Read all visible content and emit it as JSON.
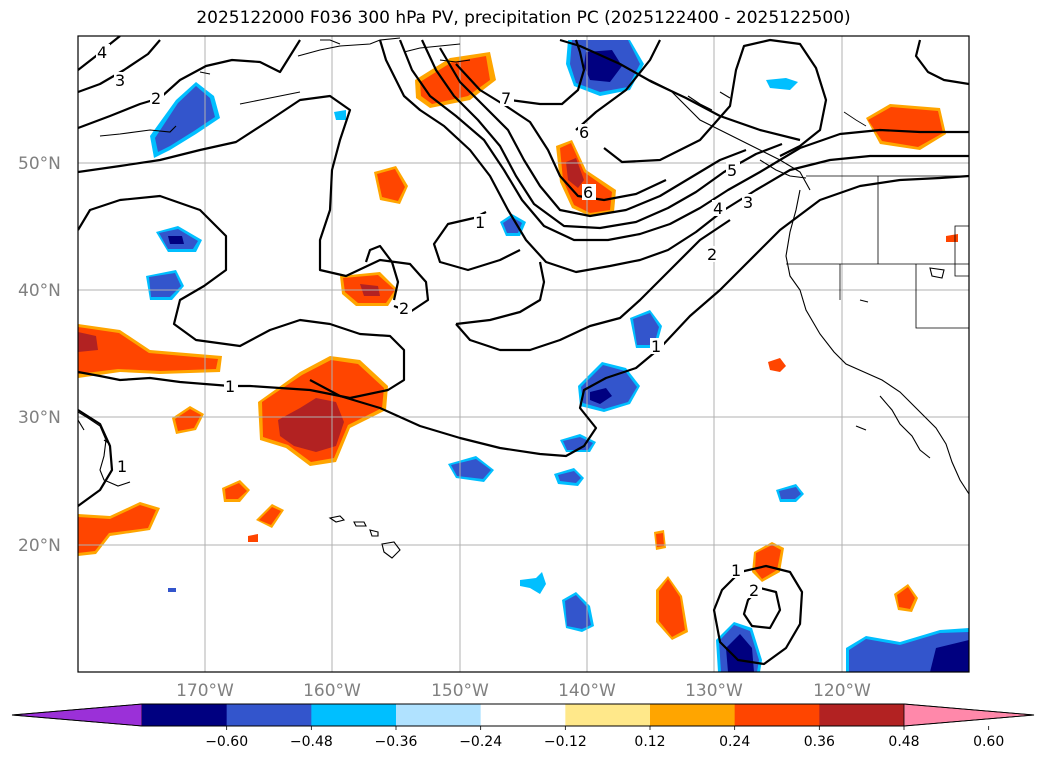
{
  "title": "2025122000 F036 300 hPa PV, precipitation PC (2025122400 - 2025122500)",
  "map": {
    "lat_labels": [
      "50°N",
      "40°N",
      "30°N",
      "20°N"
    ],
    "lon_labels": [
      "170°W",
      "160°W",
      "150°W",
      "140°W",
      "130°W",
      "120°W"
    ],
    "contour_labels": [
      "4",
      "3",
      "2",
      "7",
      "6",
      "6",
      "1",
      "5",
      "4",
      "3",
      "2",
      "2",
      "1",
      "1",
      "1",
      "1",
      "2"
    ]
  },
  "colorbar": {
    "tick_labels": [
      "−0.60",
      "−0.48",
      "−0.36",
      "−0.24",
      "−0.12",
      "0.12",
      "0.24",
      "0.36",
      "0.48",
      "0.60"
    ],
    "colors": [
      "#9b30d8",
      "#000080",
      "#3355cc",
      "#00bfff",
      "#b0e2ff",
      "#ffffff",
      "#ffe88a",
      "#ffa500",
      "#ff4500",
      "#b22222",
      "#ff88aa"
    ]
  }
}
